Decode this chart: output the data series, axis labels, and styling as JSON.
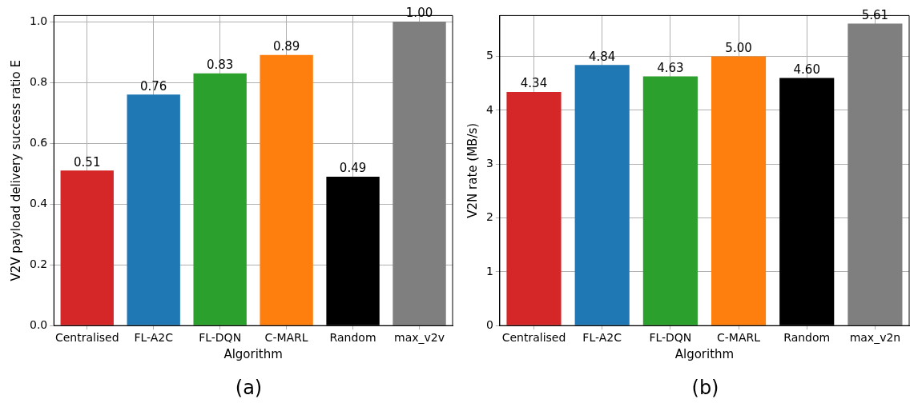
{
  "chart_data": [
    {
      "type": "bar",
      "categories": [
        "Centralised",
        "FL-A2C",
        "FL-DQN",
        "C-MARL",
        "Random",
        "max_v2v"
      ],
      "values": [
        0.51,
        0.76,
        0.83,
        0.89,
        0.49,
        1.0
      ],
      "colors": [
        "#d62728",
        "#1f77b4",
        "#2ca02c",
        "#ff7f0e",
        "#000000",
        "#7f7f7f"
      ],
      "value_labels": [
        "0.51",
        "0.76",
        "0.83",
        "0.89",
        "0.49",
        "1.00"
      ],
      "xlabel": "Algorithm",
      "ylabel": "V2V payload delivery success ratio E",
      "ylim": [
        0,
        1.02
      ],
      "yticks": [
        {
          "value": 0,
          "label": "0.0"
        },
        {
          "value": 0.2,
          "label": "0.2"
        },
        {
          "value": 0.4,
          "label": "0.4"
        },
        {
          "value": 0.6,
          "label": "0.6"
        },
        {
          "value": 0.8,
          "label": "0.8"
        },
        {
          "value": 1,
          "label": "1.0"
        }
      ],
      "grid": true,
      "annotations": [
        "(a)"
      ]
    },
    {
      "type": "bar",
      "categories": [
        "Centralised",
        "FL-A2C",
        "FL-DQN",
        "C-MARL",
        "Random",
        "max_v2n"
      ],
      "values": [
        4.34,
        4.84,
        4.63,
        5.0,
        4.6,
        5.61
      ],
      "colors": [
        "#d62728",
        "#1f77b4",
        "#2ca02c",
        "#ff7f0e",
        "#000000",
        "#7f7f7f"
      ],
      "value_labels": [
        "4.34",
        "4.84",
        "4.63",
        "5.00",
        "4.60",
        "5.61"
      ],
      "xlabel": "Algorithm",
      "ylabel": "V2N rate (MB/s)",
      "ylim": [
        0,
        5.76
      ],
      "yticks": [
        0,
        1,
        2,
        3,
        4,
        5
      ],
      "grid": true,
      "annotations": [
        "(b)"
      ]
    }
  ]
}
